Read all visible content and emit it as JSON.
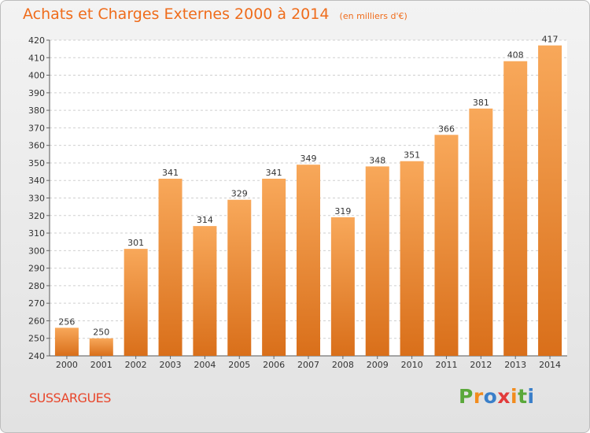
{
  "header": {
    "title": "Achats et Charges Externes 2000 à 2014",
    "subtitle": "(en milliers d'€)"
  },
  "footer": {
    "place": "SUSSARGUES",
    "logo_text": "Proxiti",
    "logo_colors": [
      "#5aa83a",
      "#f28c1e",
      "#3a7fc9",
      "#e23b3b",
      "#f28c1e",
      "#5aa83a",
      "#3a7fc9"
    ]
  },
  "colors": {
    "bar_light": "#f8a85a",
    "bar_dark": "#d96f1a",
    "accent": "#ef6c1b"
  },
  "chart_data": {
    "type": "bar",
    "categories": [
      "2000",
      "2001",
      "2002",
      "2003",
      "2004",
      "2005",
      "2006",
      "2007",
      "2008",
      "2009",
      "2010",
      "2011",
      "2012",
      "2013",
      "2014"
    ],
    "values": [
      256,
      250,
      301,
      341,
      314,
      329,
      341,
      349,
      319,
      348,
      351,
      366,
      381,
      408,
      417
    ],
    "title": "Achats et Charges Externes 2000 à 2014",
    "xlabel": "",
    "ylabel": "",
    "ylim": [
      240,
      420
    ],
    "yticks": [
      240,
      250,
      260,
      270,
      280,
      290,
      300,
      310,
      320,
      330,
      340,
      350,
      360,
      370,
      380,
      390,
      400,
      410,
      420
    ],
    "grid": true
  }
}
